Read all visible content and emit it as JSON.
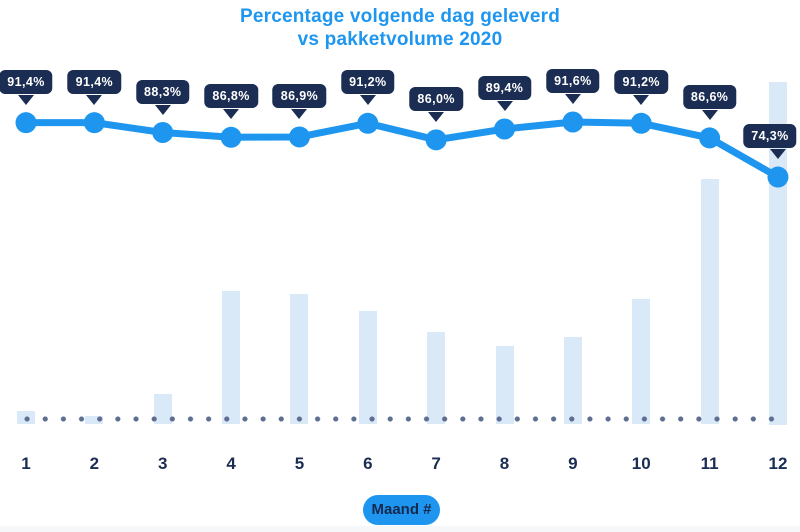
{
  "title": {
    "line1": "Percentage volgende dag geleverd",
    "line2": "vs pakketvolume 2020"
  },
  "x_axis": {
    "badge_label": "Maand #"
  },
  "colors": {
    "accent_blue": "#1e96f0",
    "navy": "#1b2d52",
    "bar_fill": "#dae9f8",
    "baseline_dot": "#5d6e91",
    "callout_text": "#ffffff",
    "background": "#ffffff",
    "footer_strip": "#f5f7f9"
  },
  "chart_data": {
    "type": "combo-line-bar",
    "title": "Percentage volgende dag geleverd vs pakketvolume 2020",
    "xlabel": "Maand #",
    "ylabel": "",
    "legend_position": "none",
    "gridlines": false,
    "categories": [
      "1",
      "2",
      "3",
      "4",
      "5",
      "6",
      "7",
      "8",
      "9",
      "10",
      "11",
      "12"
    ],
    "series": [
      {
        "name": "Percentage volgende dag geleverd",
        "type": "line",
        "unit": "%",
        "ylim": [
          70,
          95
        ],
        "values": [
          91.4,
          91.4,
          88.3,
          86.8,
          86.9,
          91.2,
          86.0,
          89.4,
          91.6,
          91.2,
          86.6,
          74.3
        ],
        "labels": [
          "91,4%",
          "91,4%",
          "88,3%",
          "86,8%",
          "86,9%",
          "91,2%",
          "86,0%",
          "89,4%",
          "91,6%",
          "91,2%",
          "86,6%",
          "74,3%"
        ]
      },
      {
        "name": "Pakketvolume 2020",
        "type": "bar",
        "unit": "relative volume (largest month = 100, no value axis shown)",
        "values": [
          4,
          2.5,
          9,
          39,
          38,
          33,
          27,
          23,
          25.5,
          36.5,
          71.5,
          100
        ]
      }
    ]
  }
}
